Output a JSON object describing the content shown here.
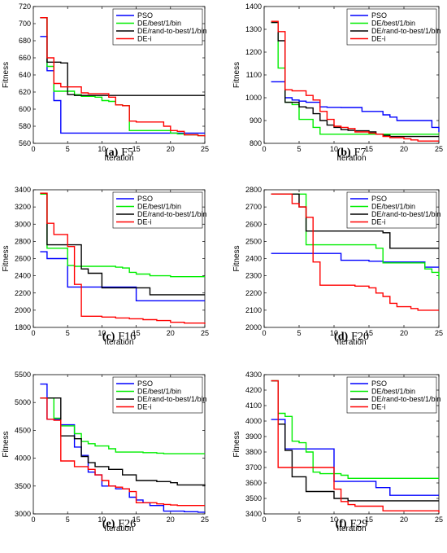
{
  "series_colors": [
    "#0000ff",
    "#00ee00",
    "#000000",
    "#ff0000"
  ],
  "legend": [
    "PSO",
    "DE/best/1/bin",
    "DE/rand-to-best/1/bin",
    "DE-i"
  ],
  "chart_data": [
    {
      "type": "line",
      "caption_tag": "(a)",
      "caption_name": "F5",
      "xlabel": "Iteration",
      "ylabel": "Fitness",
      "xlim": [
        0,
        25
      ],
      "ylim": [
        560,
        720
      ],
      "xticks": [
        0,
        5,
        10,
        15,
        20,
        25
      ],
      "yticks": [
        560,
        580,
        600,
        620,
        640,
        660,
        680,
        700,
        720
      ],
      "series": [
        {
          "name": "PSO",
          "x": [
            1,
            2,
            3,
            4,
            5,
            10,
            15,
            20,
            25
          ],
          "y": [
            685,
            645,
            610,
            572,
            572,
            572,
            572,
            572,
            572
          ]
        },
        {
          "name": "DE/best/1/bin",
          "x": [
            1,
            2,
            3,
            4,
            5,
            6,
            7,
            8,
            9,
            10,
            11,
            12,
            13,
            14,
            15,
            16,
            17,
            18,
            19,
            20,
            21,
            22,
            23,
            24,
            25
          ],
          "y": [
            707,
            650,
            621,
            621,
            621,
            617,
            615,
            615,
            614,
            610,
            609,
            605,
            604,
            575,
            575,
            575,
            575,
            575,
            575,
            572,
            571,
            570,
            570,
            569,
            569
          ]
        },
        {
          "name": "DE/rand-to-best/1/bin",
          "x": [
            1,
            2,
            3,
            4,
            5,
            6,
            25
          ],
          "y": [
            707,
            655,
            655,
            654,
            617,
            616,
            616
          ]
        },
        {
          "name": "DE-i",
          "x": [
            1,
            2,
            3,
            4,
            5,
            6,
            7,
            8,
            9,
            10,
            11,
            12,
            13,
            14,
            15,
            16,
            17,
            18,
            19,
            20,
            21,
            22,
            23,
            24,
            25
          ],
          "y": [
            707,
            660,
            630,
            626,
            626,
            626,
            619,
            618,
            618,
            618,
            614,
            605,
            604,
            586,
            585,
            585,
            585,
            585,
            580,
            575,
            574,
            570,
            570,
            569,
            568
          ]
        }
      ]
    },
    {
      "type": "line",
      "caption_tag": "(b)",
      "caption_name": "F7",
      "xlabel": "Iteration",
      "ylabel": "Fitness",
      "xlim": [
        0,
        25
      ],
      "ylim": [
        800,
        1400
      ],
      "xticks": [
        0,
        5,
        10,
        15,
        20,
        25
      ],
      "yticks": [
        800,
        900,
        1000,
        1100,
        1200,
        1300,
        1400
      ],
      "series": [
        {
          "name": "PSO",
          "x": [
            1,
            2,
            3,
            4,
            5,
            6,
            7,
            8,
            9,
            10,
            11,
            12,
            13,
            14,
            15,
            16,
            17,
            18,
            19,
            20,
            21,
            22,
            23,
            24,
            25
          ],
          "y": [
            1070,
            1070,
            1000,
            990,
            985,
            980,
            980,
            960,
            958,
            958,
            957,
            957,
            957,
            940,
            940,
            940,
            925,
            915,
            900,
            900,
            900,
            900,
            900,
            870,
            850
          ]
        },
        {
          "name": "DE/best/1/bin",
          "x": [
            1,
            2,
            3,
            4,
            5,
            6,
            7,
            8,
            9,
            10,
            25
          ],
          "y": [
            1330,
            1130,
            980,
            970,
            905,
            905,
            870,
            840,
            840,
            840,
            840
          ]
        },
        {
          "name": "DE/rand-to-best/1/bin",
          "x": [
            1,
            2,
            3,
            4,
            5,
            6,
            7,
            8,
            9,
            10,
            11,
            12,
            13,
            14,
            15,
            16,
            17,
            18,
            19,
            20,
            21,
            22,
            23,
            24,
            25
          ],
          "y": [
            1330,
            1250,
            980,
            980,
            960,
            955,
            930,
            900,
            880,
            870,
            860,
            857,
            855,
            855,
            850,
            840,
            835,
            830,
            830,
            830,
            830,
            830,
            830,
            830,
            830
          ]
        },
        {
          "name": "DE-i",
          "x": [
            1,
            2,
            3,
            4,
            5,
            6,
            7,
            8,
            9,
            10,
            11,
            12,
            13,
            14,
            15,
            16,
            17,
            18,
            19,
            20,
            21,
            22,
            23,
            24,
            25
          ],
          "y": [
            1335,
            1290,
            1035,
            1030,
            1030,
            1010,
            990,
            940,
            905,
            875,
            870,
            865,
            850,
            850,
            845,
            840,
            830,
            825,
            825,
            820,
            815,
            810,
            810,
            810,
            810
          ]
        }
      ]
    },
    {
      "type": "line",
      "caption_tag": "(c)",
      "caption_name": "F16",
      "xlabel": "Iteration",
      "ylabel": "Fitness",
      "xlim": [
        0,
        25
      ],
      "ylim": [
        1800,
        3400
      ],
      "xticks": [
        0,
        5,
        10,
        15,
        20,
        25
      ],
      "yticks": [
        1800,
        2000,
        2200,
        2400,
        2600,
        2800,
        3000,
        3200,
        3400
      ],
      "series": [
        {
          "name": "PSO",
          "x": [
            1,
            2,
            3,
            4,
            5,
            6,
            7,
            10,
            14,
            15,
            16,
            25
          ],
          "y": [
            2680,
            2600,
            2600,
            2600,
            2270,
            2270,
            2270,
            2270,
            2270,
            2110,
            2110,
            2110
          ]
        },
        {
          "name": "DE/best/1/bin",
          "x": [
            1,
            2,
            3,
            4,
            5,
            6,
            7,
            10,
            12,
            13,
            14,
            15,
            16,
            17,
            20,
            25
          ],
          "y": [
            3350,
            2720,
            2720,
            2720,
            2520,
            2510,
            2510,
            2510,
            2500,
            2490,
            2440,
            2420,
            2420,
            2400,
            2390,
            2390
          ]
        },
        {
          "name": "DE/rand-to-best/1/bin",
          "x": [
            1,
            2,
            3,
            4,
            5,
            6,
            7,
            8,
            9,
            10,
            11,
            16,
            17,
            25
          ],
          "y": [
            3360,
            2760,
            2760,
            2760,
            2760,
            2760,
            2480,
            2430,
            2430,
            2260,
            2260,
            2260,
            2180,
            2180
          ]
        },
        {
          "name": "DE-i",
          "x": [
            1,
            2,
            3,
            4,
            5,
            6,
            7,
            8,
            9,
            10,
            12,
            14,
            16,
            18,
            20,
            22,
            25
          ],
          "y": [
            3360,
            3010,
            2880,
            2880,
            2740,
            2300,
            1930,
            1930,
            1930,
            1920,
            1910,
            1900,
            1890,
            1880,
            1860,
            1850,
            1840
          ]
        }
      ]
    },
    {
      "type": "line",
      "caption_tag": "(d)",
      "caption_name": "F20",
      "xlabel": "Iteration",
      "ylabel": "Fitness",
      "xlim": [
        0,
        25
      ],
      "ylim": [
        2000,
        2800
      ],
      "xticks": [
        0,
        5,
        10,
        15,
        20,
        25
      ],
      "yticks": [
        2000,
        2100,
        2200,
        2300,
        2400,
        2500,
        2600,
        2700,
        2800
      ],
      "series": [
        {
          "name": "PSO",
          "x": [
            1,
            10,
            11,
            14,
            15,
            16,
            17,
            22,
            23,
            25
          ],
          "y": [
            2430,
            2430,
            2390,
            2390,
            2385,
            2385,
            2380,
            2380,
            2350,
            2350
          ]
        },
        {
          "name": "DE/best/1/bin",
          "x": [
            1,
            5,
            6,
            7,
            10,
            15,
            16,
            17,
            22,
            23,
            24,
            25
          ],
          "y": [
            2775,
            2775,
            2480,
            2480,
            2480,
            2480,
            2460,
            2375,
            2375,
            2340,
            2320,
            2280
          ]
        },
        {
          "name": "DE/rand-to-best/1/bin",
          "x": [
            1,
            4,
            5,
            6,
            7,
            10,
            17,
            18,
            25
          ],
          "y": [
            2775,
            2775,
            2700,
            2560,
            2560,
            2560,
            2550,
            2460,
            2460
          ]
        },
        {
          "name": "DE-i",
          "x": [
            1,
            3,
            4,
            5,
            6,
            7,
            8,
            10,
            13,
            15,
            16,
            17,
            18,
            19,
            20,
            21,
            22,
            23,
            25
          ],
          "y": [
            2775,
            2775,
            2720,
            2700,
            2640,
            2380,
            2245,
            2245,
            2240,
            2230,
            2200,
            2180,
            2140,
            2120,
            2120,
            2110,
            2100,
            2100,
            2100
          ]
        }
      ]
    },
    {
      "type": "line",
      "caption_tag": "(e)",
      "caption_name": "F26",
      "xlabel": "Iteration",
      "ylabel": "Fitness",
      "xlim": [
        0,
        25
      ],
      "ylim": [
        3000,
        5500
      ],
      "xticks": [
        0,
        5,
        10,
        15,
        20,
        25
      ],
      "yticks": [
        3000,
        3500,
        4000,
        4500,
        5000,
        5500
      ],
      "series": [
        {
          "name": "PSO",
          "x": [
            1,
            2,
            3,
            4,
            5,
            6,
            7,
            8,
            9,
            10,
            11,
            12,
            13,
            14,
            15,
            16,
            17,
            18,
            19,
            20,
            21,
            22,
            23,
            24,
            25
          ],
          "y": [
            5330,
            4700,
            4700,
            4600,
            4600,
            4200,
            4050,
            3750,
            3700,
            3500,
            3500,
            3450,
            3450,
            3300,
            3250,
            3200,
            3150,
            3150,
            3050,
            3050,
            3050,
            3040,
            3040,
            3030,
            3030
          ]
        },
        {
          "name": "DE/best/1/bin",
          "x": [
            1,
            2,
            3,
            4,
            5,
            6,
            7,
            8,
            9,
            10,
            11,
            12,
            13,
            14,
            15,
            16,
            17,
            18,
            19,
            20,
            21,
            22,
            23,
            24,
            25
          ],
          "y": [
            5080,
            5080,
            4720,
            4580,
            4580,
            4440,
            4300,
            4260,
            4220,
            4220,
            4170,
            4110,
            4110,
            4110,
            4110,
            4100,
            4100,
            4090,
            4080,
            4080,
            4080,
            4080,
            4080,
            4080,
            4080
          ]
        },
        {
          "name": "DE/rand-to-best/1/bin",
          "x": [
            1,
            2,
            3,
            4,
            5,
            6,
            7,
            8,
            9,
            10,
            11,
            12,
            13,
            14,
            15,
            16,
            17,
            18,
            19,
            20,
            21,
            22,
            23,
            24,
            25
          ],
          "y": [
            5080,
            5080,
            5080,
            4400,
            4400,
            4350,
            4030,
            3920,
            3850,
            3850,
            3800,
            3800,
            3700,
            3700,
            3600,
            3600,
            3600,
            3580,
            3580,
            3560,
            3520,
            3520,
            3520,
            3520,
            3500
          ]
        },
        {
          "name": "DE-i",
          "x": [
            1,
            2,
            3,
            4,
            5,
            6,
            7,
            8,
            9,
            10,
            11,
            12,
            13,
            14,
            15,
            16,
            17,
            18,
            19,
            20,
            21,
            22,
            23,
            24,
            25
          ],
          "y": [
            5080,
            4700,
            4680,
            3950,
            3950,
            3850,
            3850,
            3800,
            3700,
            3600,
            3500,
            3480,
            3450,
            3400,
            3200,
            3200,
            3200,
            3180,
            3170,
            3160,
            3150,
            3150,
            3150,
            3150,
            3150
          ]
        }
      ]
    },
    {
      "type": "line",
      "caption_tag": "(f)",
      "caption_name": "F29",
      "xlabel": "Iteration",
      "ylabel": "Fitness",
      "xlim": [
        0,
        25
      ],
      "ylim": [
        3400,
        4300
      ],
      "xticks": [
        0,
        5,
        10,
        15,
        20,
        25
      ],
      "yticks": [
        3400,
        3500,
        3600,
        3700,
        3800,
        3900,
        4000,
        4100,
        4200,
        4300
      ],
      "series": [
        {
          "name": "PSO",
          "x": [
            1,
            2,
            3,
            4,
            9,
            10,
            15,
            16,
            17,
            18,
            25
          ],
          "y": [
            4010,
            4010,
            3820,
            3820,
            3820,
            3610,
            3610,
            3570,
            3570,
            3520,
            3520
          ]
        },
        {
          "name": "DE/best/1/bin",
          "x": [
            1,
            2,
            3,
            4,
            5,
            6,
            7,
            8,
            9,
            10,
            11,
            12,
            15,
            25
          ],
          "y": [
            4260,
            4050,
            4030,
            3870,
            3860,
            3800,
            3670,
            3660,
            3660,
            3660,
            3650,
            3630,
            3630,
            3630
          ]
        },
        {
          "name": "DE/rand-to-best/1/bin",
          "x": [
            1,
            2,
            3,
            4,
            5,
            6,
            9,
            10,
            12,
            25
          ],
          "y": [
            4260,
            3980,
            3810,
            3640,
            3640,
            3545,
            3545,
            3500,
            3485,
            3485
          ]
        },
        {
          "name": "DE-i",
          "x": [
            1,
            2,
            5,
            9,
            10,
            11,
            12,
            13,
            16,
            17,
            25
          ],
          "y": [
            4260,
            3700,
            3700,
            3700,
            3560,
            3480,
            3460,
            3450,
            3450,
            3420,
            3410
          ]
        }
      ]
    }
  ]
}
